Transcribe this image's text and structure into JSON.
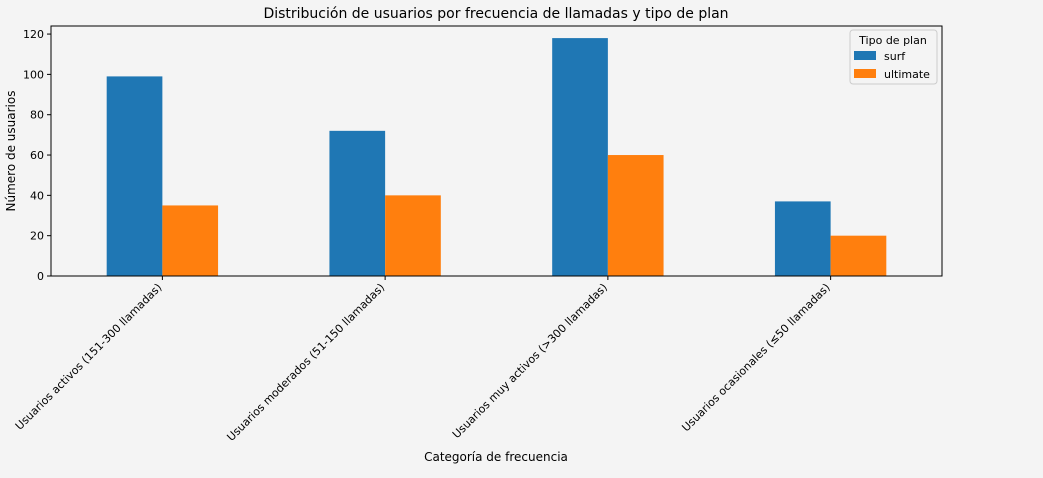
{
  "chart_data": {
    "type": "bar",
    "title": "Distribución de usuarios por frecuencia de llamadas y tipo de plan",
    "xlabel": "Categoría de frecuencia",
    "ylabel": "Número de usuarios",
    "categories": [
      "Usuarios activos (151-300 llamadas)",
      "Usuarios moderados (51-150 llamadas)",
      "Usuarios muy activos (>300 llamadas)",
      "Usuarios ocasionales (≤50 llamadas)"
    ],
    "series": [
      {
        "name": "surf",
        "color": "#1f77b4",
        "values": [
          99,
          72,
          118,
          37
        ]
      },
      {
        "name": "ultimate",
        "color": "#ff7f0e",
        "values": [
          35,
          40,
          60,
          20
        ]
      }
    ],
    "ylim": [
      0,
      124
    ],
    "yticks": [
      0,
      20,
      40,
      60,
      80,
      100,
      120
    ],
    "grid": false,
    "legend": {
      "title": "Tipo de plan",
      "placement": "top-right"
    }
  }
}
